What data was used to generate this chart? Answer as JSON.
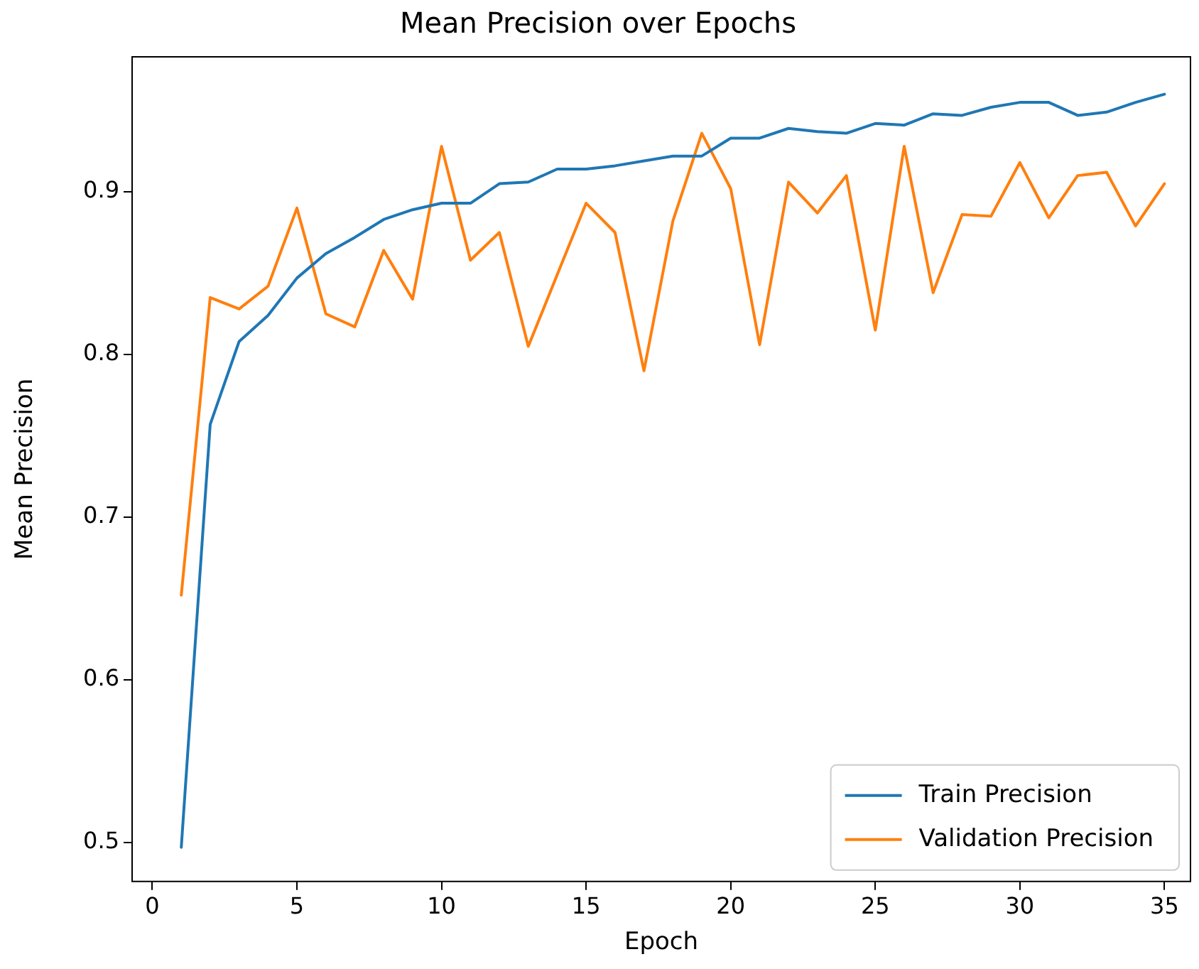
{
  "chart_data": {
    "type": "line",
    "title": "Mean Precision over Epochs",
    "xlabel": "Epoch",
    "ylabel": "Mean Precision",
    "x": [
      1,
      2,
      3,
      4,
      5,
      6,
      7,
      8,
      9,
      10,
      11,
      12,
      13,
      14,
      15,
      16,
      17,
      18,
      19,
      20,
      21,
      22,
      23,
      24,
      25,
      26,
      27,
      28,
      29,
      30,
      31,
      32,
      33,
      34,
      35
    ],
    "series": [
      {
        "name": "Train Precision",
        "color": "#1f77b4",
        "values": [
          0.497,
          0.757,
          0.808,
          0.824,
          0.847,
          0.862,
          0.872,
          0.883,
          0.889,
          0.893,
          0.893,
          0.905,
          0.906,
          0.914,
          0.914,
          0.916,
          0.919,
          0.922,
          0.922,
          0.933,
          0.933,
          0.939,
          0.937,
          0.936,
          0.942,
          0.941,
          0.948,
          0.947,
          0.952,
          0.955,
          0.955,
          0.947,
          0.949,
          0.955,
          0.96
        ]
      },
      {
        "name": "Validation Precision",
        "color": "#ff7f0e",
        "values": [
          0.652,
          0.835,
          0.828,
          0.842,
          0.89,
          0.825,
          0.817,
          0.864,
          0.834,
          0.928,
          0.858,
          0.875,
          0.805,
          0.849,
          0.893,
          0.875,
          0.79,
          0.882,
          0.936,
          0.902,
          0.806,
          0.906,
          0.887,
          0.91,
          0.815,
          0.928,
          0.838,
          0.886,
          0.885,
          0.918,
          0.884,
          0.91,
          0.912,
          0.879,
          0.905
        ]
      }
    ],
    "xlim": [
      -0.7,
      35.9
    ],
    "xticks": [
      0,
      5,
      10,
      15,
      20,
      25,
      30,
      35
    ],
    "ylim": [
      0.476,
      0.983
    ],
    "yticks": [
      0.5,
      0.6,
      0.7,
      0.8,
      0.9
    ],
    "grid": false,
    "legend": "bottom right",
    "marker": "none",
    "line_style": "solid"
  }
}
